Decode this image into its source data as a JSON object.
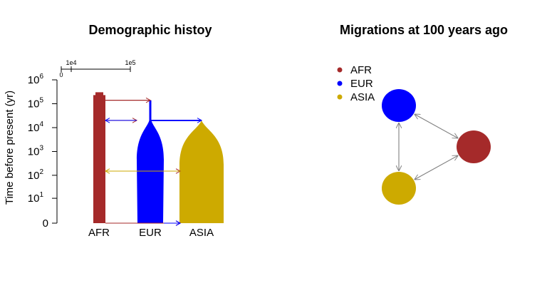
{
  "chart_data": [
    {
      "type": "demographic-history",
      "title": "Demographic histoy",
      "ylabel": "Time before present (yr)",
      "yscale": "log1p",
      "yticks": [
        {
          "value": 0,
          "base": "0",
          "exp": ""
        },
        {
          "value": 10,
          "base": "10",
          "exp": "1"
        },
        {
          "value": 100,
          "base": "10",
          "exp": "2"
        },
        {
          "value": 1000,
          "base": "10",
          "exp": "3"
        },
        {
          "value": 10000,
          "base": "10",
          "exp": "4"
        },
        {
          "value": 100000,
          "base": "10",
          "exp": "5"
        },
        {
          "value": 1000000,
          "base": "10",
          "exp": "6"
        }
      ],
      "size_scale": {
        "ticks": [
          "0",
          "1e4",
          "1e5"
        ]
      },
      "populations": [
        {
          "name": "AFR",
          "color": "#a52a2a",
          "shape": "constant",
          "time_top": 230000
        },
        {
          "name": "EUR",
          "color": "#0000ff",
          "shape": "split",
          "split_time": 140000,
          "split_from": "AFR"
        },
        {
          "name": "ASIA",
          "color": "#cdaa00",
          "shape": "split",
          "split_time": 20000,
          "split_from": "EUR"
        }
      ],
      "splits": [
        {
          "from": "AFR",
          "to": "EUR",
          "time": 140000,
          "color": "#a52a2a"
        },
        {
          "from": "EUR",
          "to": "ASIA",
          "time": 20000,
          "color": "#0000ff"
        }
      ],
      "migrations": [
        {
          "from": "AFR",
          "to": "EUR",
          "time": 20000,
          "color": "#a52a2a"
        },
        {
          "from": "EUR",
          "to": "AFR",
          "time": 20000,
          "color": "#0000ff"
        },
        {
          "from": "AFR",
          "to": "ASIA",
          "time": 150,
          "color": "#a52a2a"
        },
        {
          "from": "ASIA",
          "to": "AFR",
          "time": 150,
          "color": "#cdaa00"
        },
        {
          "from": "AFR",
          "to": "ASIA",
          "time": 0,
          "color": "#a52a2a"
        },
        {
          "from": "EUR",
          "to": "ASIA",
          "time": 0,
          "color": "#0000ff"
        }
      ]
    },
    {
      "type": "network",
      "title": "Migrations at 100 years ago",
      "legend": {
        "placement": "top-left",
        "entries": [
          {
            "label": "AFR",
            "color": "#a52a2a"
          },
          {
            "label": "EUR",
            "color": "#0000ff"
          },
          {
            "label": "ASIA",
            "color": "#cdaa00"
          }
        ]
      },
      "nodes": [
        {
          "id": "EUR",
          "color": "#0000ff"
        },
        {
          "id": "AFR",
          "color": "#a52a2a"
        },
        {
          "id": "ASIA",
          "color": "#cdaa00"
        }
      ],
      "edges": [
        {
          "a": "EUR",
          "b": "AFR",
          "direction": "both"
        },
        {
          "a": "EUR",
          "b": "ASIA",
          "direction": "both"
        },
        {
          "a": "ASIA",
          "b": "AFR",
          "direction": "both"
        }
      ],
      "edge_color": "#808080"
    }
  ]
}
